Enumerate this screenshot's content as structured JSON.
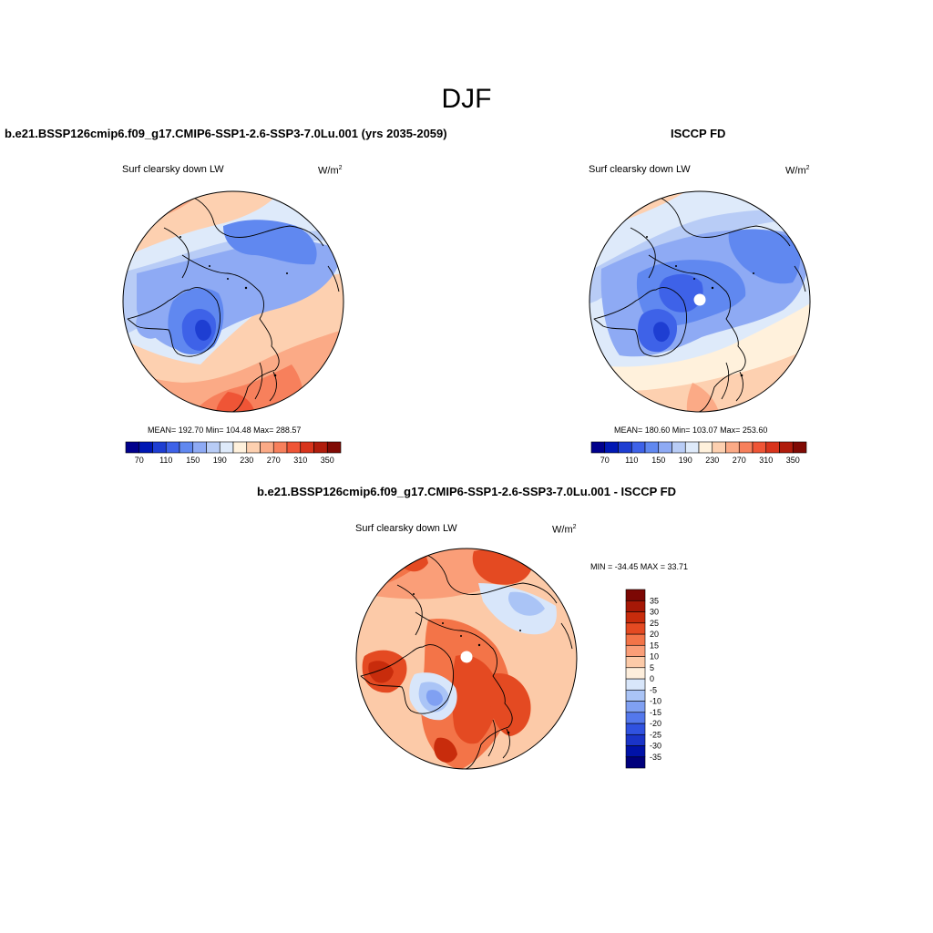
{
  "figure": {
    "season_title": "DJF"
  },
  "panels": [
    {
      "title": "b.e21.BSSP126cmip6.f09_g17.CMIP6-SSP1-2.6-SSP3-7.0Lu.001 (yrs 2035-2059)",
      "variable": "Surf clearsky down LW",
      "units": "W/m",
      "units_exp": "2",
      "stats": "MEAN= 192.70  Min= 104.48  Max= 288.57"
    },
    {
      "title": "ISCCP FD",
      "variable": "Surf clearsky down LW",
      "units": "W/m",
      "units_exp": "2",
      "stats": "MEAN= 180.60  Min= 103.07  Max= 253.60"
    },
    {
      "title": "b.e21.BSSP126cmip6.f09_g17.CMIP6-SSP1-2.6-SSP3-7.0Lu.001 - ISCCP FD",
      "variable": "Surf clearsky down LW",
      "units": "W/m",
      "units_exp": "2",
      "stats": "MIN = -34.45 MAX =  33.71"
    }
  ],
  "chart_data": [
    {
      "type": "heatmap",
      "projection": "north polar stereographic",
      "title": "b.e21.BSSP126cmip6.f09_g17.CMIP6-SSP1-2.6-SSP3-7.0Lu.001 (yrs 2035-2059)",
      "variable": "Surf clearsky down LW",
      "units": "W/m2",
      "mean": 192.7,
      "min": 104.48,
      "max": 288.57,
      "colorbar": {
        "orientation": "horizontal",
        "levels": [
          70,
          90,
          110,
          130,
          150,
          170,
          190,
          210,
          230,
          250,
          270,
          290,
          310,
          330,
          350
        ],
        "tick_labels": [
          "70",
          "110",
          "150",
          "190",
          "230",
          "270",
          "310",
          "350"
        ],
        "colors": [
          "#00008c",
          "#0018b4",
          "#1e3ed2",
          "#3e62e8",
          "#6088f0",
          "#8eaaf4",
          "#b8ccf6",
          "#deeafa",
          "#fff1dc",
          "#fdd0b0",
          "#fbaa86",
          "#f7805c",
          "#ef5536",
          "#d8341c",
          "#b01c0c",
          "#800a04"
        ]
      }
    },
    {
      "type": "heatmap",
      "projection": "north polar stereographic",
      "title": "ISCCP FD",
      "variable": "Surf clearsky down LW",
      "units": "W/m2",
      "mean": 180.6,
      "min": 103.07,
      "max": 253.6,
      "colorbar": {
        "orientation": "horizontal",
        "levels": [
          70,
          90,
          110,
          130,
          150,
          170,
          190,
          210,
          230,
          250,
          270,
          290,
          310,
          330,
          350
        ],
        "tick_labels": [
          "70",
          "110",
          "150",
          "190",
          "230",
          "270",
          "310",
          "350"
        ],
        "colors": [
          "#00008c",
          "#0018b4",
          "#1e3ed2",
          "#3e62e8",
          "#6088f0",
          "#8eaaf4",
          "#b8ccf6",
          "#deeafa",
          "#fff1dc",
          "#fdd0b0",
          "#fbaa86",
          "#f7805c",
          "#ef5536",
          "#d8341c",
          "#b01c0c",
          "#800a04"
        ]
      }
    },
    {
      "type": "heatmap",
      "projection": "north polar stereographic",
      "title": "b.e21.BSSP126cmip6.f09_g17.CMIP6-SSP1-2.6-SSP3-7.0Lu.001 - ISCCP FD",
      "variable": "Surf clearsky down LW",
      "units": "W/m2",
      "min": -34.45,
      "max": 33.71,
      "colorbar": {
        "orientation": "vertical",
        "levels": [
          -35,
          -30,
          -25,
          -20,
          -15,
          -10,
          -5,
          0,
          5,
          10,
          15,
          20,
          25,
          30,
          35
        ],
        "tick_labels": [
          "-35",
          "-30",
          "-25",
          "-20",
          "-15",
          "-10",
          "-5",
          "0",
          "5",
          "10",
          "15",
          "20",
          "25",
          "30",
          "35"
        ],
        "colors": [
          "#00007c",
          "#0012a8",
          "#1a34c8",
          "#3052e0",
          "#5478ec",
          "#80a0f2",
          "#aac4f6",
          "#d8e6fa",
          "#fdeedc",
          "#fccaa8",
          "#fa9e78",
          "#f37448",
          "#e44a22",
          "#c82c0c",
          "#a61806",
          "#7c0804"
        ]
      }
    }
  ]
}
